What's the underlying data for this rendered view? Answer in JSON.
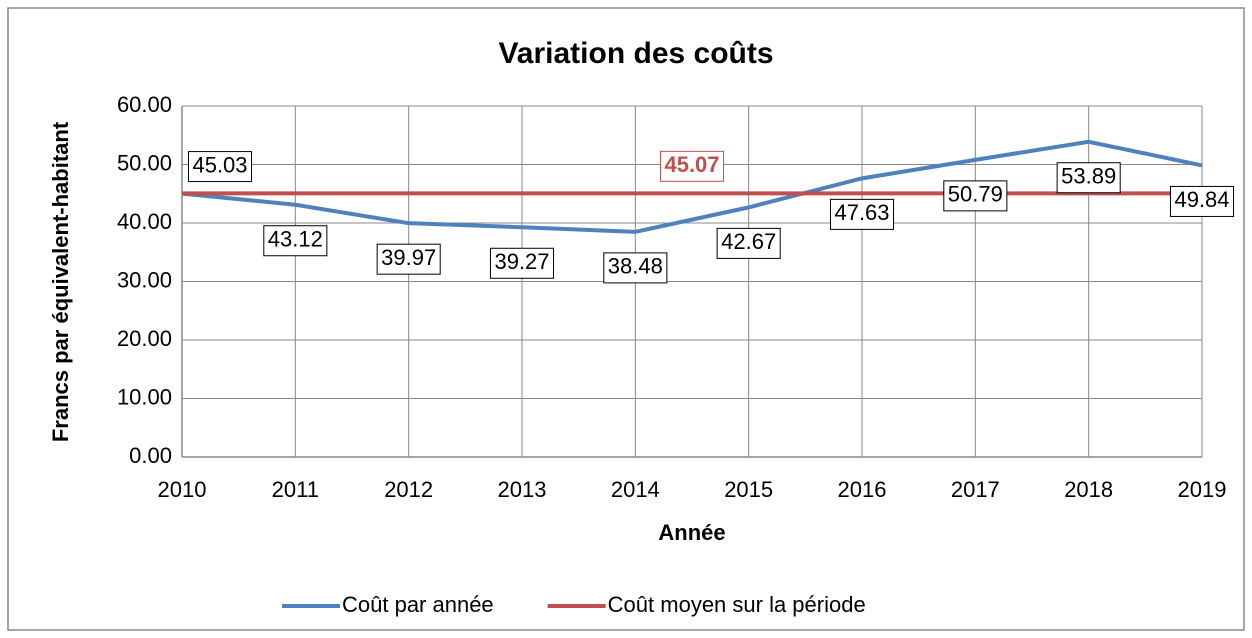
{
  "chart_data": {
    "type": "line",
    "title": "Variation des coûts",
    "xlabel": "Année",
    "ylabel": "Francs par équivalent-habitant",
    "x": [
      2010,
      2011,
      2012,
      2013,
      2014,
      2015,
      2016,
      2017,
      2018,
      2019
    ],
    "xlim": [
      2010,
      2019
    ],
    "xticks": [
      2010,
      2011,
      2012,
      2013,
      2014,
      2015,
      2016,
      2017,
      2018,
      2019
    ],
    "ylim": [
      0,
      60
    ],
    "yticks": [
      {
        "value": 0,
        "label": "0.00"
      },
      {
        "value": 10,
        "label": "10.00"
      },
      {
        "value": 20,
        "label": "20.00"
      },
      {
        "value": 30,
        "label": "30.00"
      },
      {
        "value": 40,
        "label": "40.00"
      },
      {
        "value": 50,
        "label": "50.00"
      },
      {
        "value": 60,
        "label": "60.00"
      }
    ],
    "grid": true,
    "legend": "bottom",
    "series": [
      {
        "name": "Coût par année",
        "color": "#4f81bd",
        "values": [
          45.03,
          43.12,
          39.97,
          39.27,
          38.48,
          42.67,
          47.63,
          50.79,
          53.89,
          49.84
        ]
      },
      {
        "name": "Coût moyen sur la période",
        "color": "#c0504d",
        "values": [
          45.07,
          45.07,
          45.07,
          45.07,
          45.07,
          45.07,
          45.07,
          45.07,
          45.07,
          45.07
        ]
      }
    ]
  }
}
